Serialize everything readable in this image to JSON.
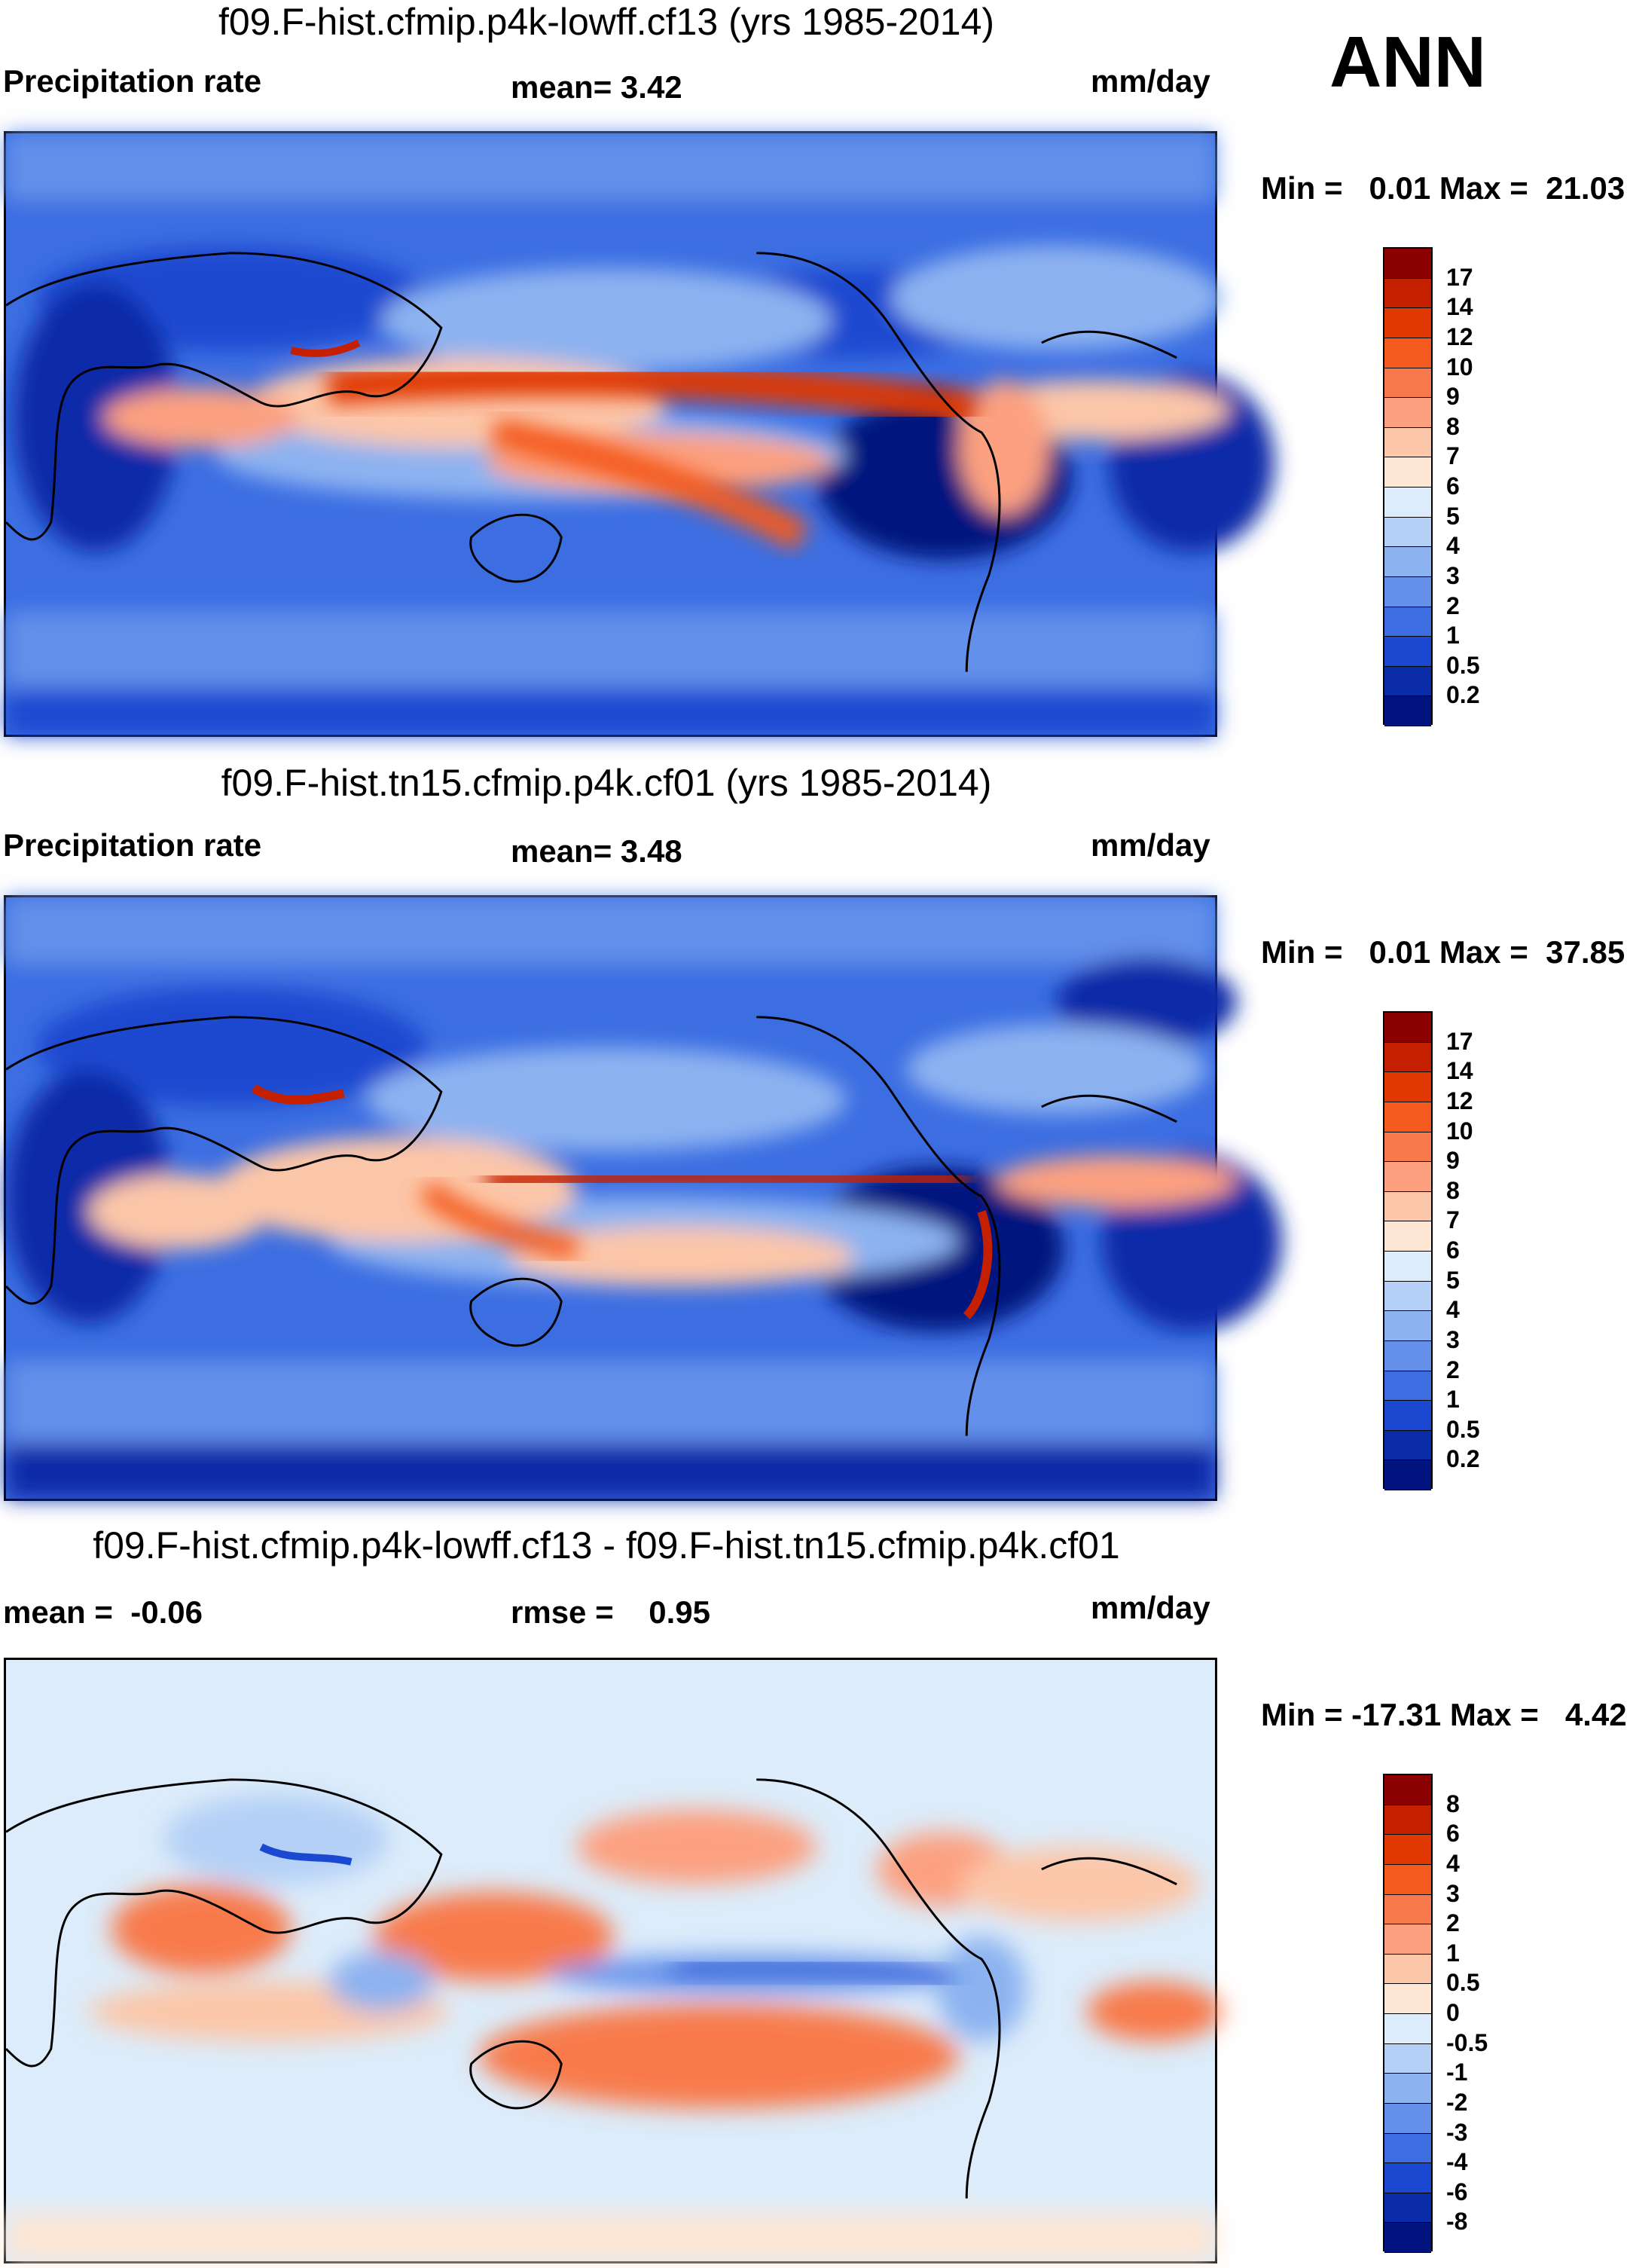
{
  "season": "ANN",
  "panels": [
    {
      "title": "f09.F-hist.cfmip.p4k-lowff.cf13 (yrs 1985-2014)",
      "left_label": "Precipitation rate",
      "center_label": "mean=   3.42",
      "units": "mm/day",
      "minmax": "Min =   0.01 Max =  21.03",
      "levels": [
        "17",
        "14",
        "12",
        "10",
        "9",
        "8",
        "7",
        "6",
        "5",
        "4",
        "3",
        "2",
        "1",
        "0.5",
        "0.2"
      ],
      "colors": [
        "#8b0000",
        "#c42000",
        "#e03800",
        "#f45a1e",
        "#f87a4c",
        "#fca080",
        "#fcc6a8",
        "#fde6d4",
        "#dcecfa",
        "#b4d0f6",
        "#8cb2f0",
        "#6490ea",
        "#3c6ee2",
        "#1a48d0",
        "#0a2ca8",
        "#00137e"
      ]
    },
    {
      "title": "f09.F-hist.tn15.cfmip.p4k.cf01 (yrs 1985-2014)",
      "left_label": "Precipitation rate",
      "center_label": "mean=   3.48",
      "units": "mm/day",
      "minmax": "Min =   0.01 Max =  37.85",
      "levels": [
        "17",
        "14",
        "12",
        "10",
        "9",
        "8",
        "7",
        "6",
        "5",
        "4",
        "3",
        "2",
        "1",
        "0.5",
        "0.2"
      ],
      "colors": [
        "#8b0000",
        "#c42000",
        "#e03800",
        "#f45a1e",
        "#f87a4c",
        "#fca080",
        "#fcc6a8",
        "#fde6d4",
        "#dcecfa",
        "#b4d0f6",
        "#8cb2f0",
        "#6490ea",
        "#3c6ee2",
        "#1a48d0",
        "#0a2ca8",
        "#00137e"
      ]
    },
    {
      "title": "f09.F-hist.cfmip.p4k-lowff.cf13 - f09.F-hist.tn15.cfmip.p4k.cf01",
      "left_label": "mean =  -0.06",
      "center_label": "rmse =    0.95",
      "units": "mm/day",
      "minmax": "Min = -17.31 Max =   4.42",
      "levels": [
        "8",
        "6",
        "4",
        "3",
        "2",
        "1",
        "0.5",
        "0",
        "-0.5",
        "-1",
        "-2",
        "-3",
        "-4",
        "-6",
        "-8"
      ],
      "colors": [
        "#8b0000",
        "#c42000",
        "#e03800",
        "#f45a1e",
        "#f87a4c",
        "#fca080",
        "#fcc6a8",
        "#fde6d4",
        "#dcecfa",
        "#b4d0f6",
        "#8cb2f0",
        "#6490ea",
        "#3c6ee2",
        "#1a48d0",
        "#0a2ca8",
        "#00137e"
      ]
    }
  ]
}
